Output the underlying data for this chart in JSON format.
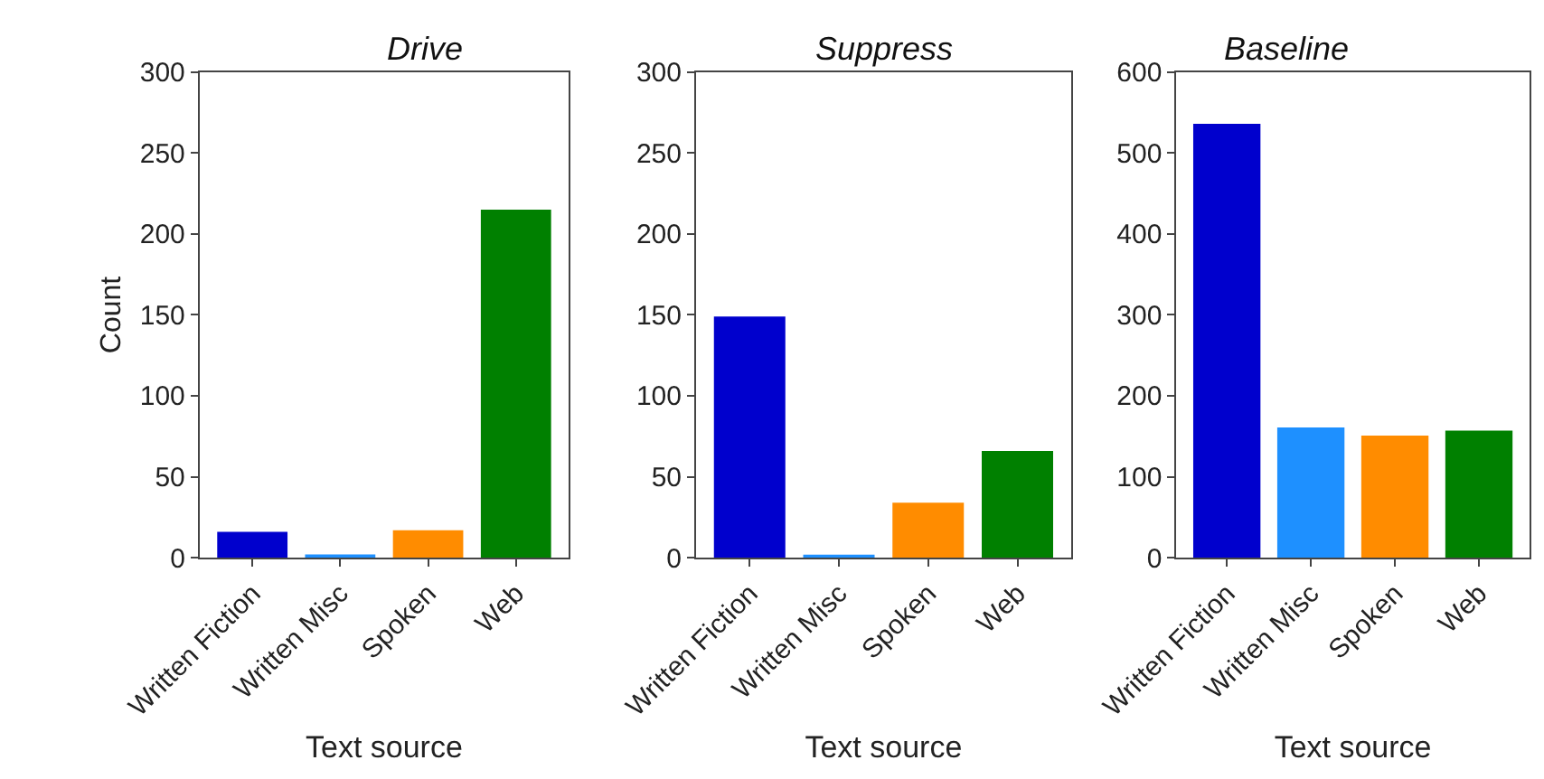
{
  "chart_data": [
    {
      "type": "bar",
      "title": "Drive",
      "xlabel": "Text source",
      "ylabel": "Count",
      "categories": [
        "Written Fiction",
        "Written Misc",
        "Spoken",
        "Web"
      ],
      "values": [
        16,
        2,
        17,
        215
      ],
      "colors": [
        "#0000cd",
        "#1e90ff",
        "#ff8c00",
        "#008000"
      ],
      "ylim": [
        0,
        300
      ],
      "yticks": [
        0,
        50,
        100,
        150,
        200,
        250,
        300
      ]
    },
    {
      "type": "bar",
      "title": "Suppress",
      "xlabel": "Text source",
      "categories": [
        "Written Fiction",
        "Written Misc",
        "Spoken",
        "Web"
      ],
      "values": [
        149,
        1,
        34,
        66
      ],
      "colors": [
        "#0000cd",
        "#1e90ff",
        "#ff8c00",
        "#008000"
      ],
      "ylim": [
        0,
        300
      ],
      "yticks": [
        0,
        50,
        100,
        150,
        200,
        250,
        300
      ]
    },
    {
      "type": "bar",
      "title": "Baseline",
      "xlabel": "Text source",
      "categories": [
        "Written Fiction",
        "Written Misc",
        "Spoken",
        "Web"
      ],
      "values": [
        536,
        161,
        151,
        157
      ],
      "colors": [
        "#0000cd",
        "#1e90ff",
        "#ff8c00",
        "#008000"
      ],
      "ylim": [
        0,
        600
      ],
      "yticks": [
        0,
        100,
        200,
        300,
        400,
        500,
        600
      ]
    }
  ]
}
